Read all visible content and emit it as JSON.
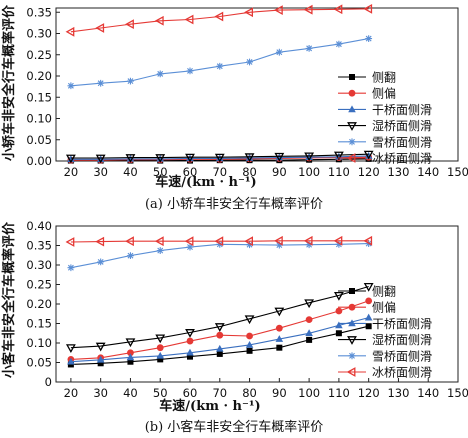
{
  "chart_data": [
    {
      "type": "line",
      "title": "(a) 小轿车非安全行车概率评价",
      "xlabel": "车速/(km · h⁻¹)",
      "ylabel": "小轿车非安全行车概率评价",
      "xlim": [
        15,
        150
      ],
      "ylim": [
        0,
        0.36
      ],
      "x_ticks": [
        20,
        30,
        40,
        50,
        60,
        70,
        80,
        90,
        100,
        110,
        120,
        130,
        140,
        150
      ],
      "y_ticks": [
        0.0,
        0.05,
        0.1,
        0.15,
        0.2,
        0.25,
        0.3,
        0.35
      ],
      "y_tick_labels": [
        "0.00",
        "0.05",
        "0.10",
        "0.15",
        "0.20",
        "0.25",
        "0.30",
        "0.35"
      ],
      "x": [
        20,
        30,
        40,
        50,
        60,
        70,
        80,
        90,
        100,
        110,
        120
      ],
      "legend_position": "right",
      "series": [
        {
          "name": "侧翻",
          "marker": "square",
          "color": "#000000",
          "values": [
            0.001,
            0.001,
            0.001,
            0.001,
            0.001,
            0.002,
            0.002,
            0.002,
            0.003,
            0.004,
            0.005
          ]
        },
        {
          "name": "侧偏",
          "marker": "circle",
          "color": "#e53935",
          "values": [
            0.002,
            0.002,
            0.003,
            0.003,
            0.004,
            0.004,
            0.005,
            0.006,
            0.007,
            0.008,
            0.009
          ]
        },
        {
          "name": "干桥面侧滑",
          "marker": "triangle-up",
          "color": "#3a6fbf",
          "values": [
            0.004,
            0.004,
            0.005,
            0.005,
            0.006,
            0.006,
            0.007,
            0.008,
            0.009,
            0.01,
            0.012
          ]
        },
        {
          "name": "湿桥面侧滑",
          "marker": "triangle-down",
          "color": "#000000",
          "values": [
            0.007,
            0.007,
            0.008,
            0.008,
            0.009,
            0.009,
            0.01,
            0.011,
            0.012,
            0.014,
            0.016
          ]
        },
        {
          "name": "雪桥面侧滑",
          "marker": "star",
          "color": "#5b8fd6",
          "values": [
            0.177,
            0.183,
            0.188,
            0.205,
            0.212,
            0.223,
            0.233,
            0.256,
            0.265,
            0.275,
            0.288
          ]
        },
        {
          "name": "冰桥面侧滑",
          "marker": "triangle-left",
          "color": "#e53935",
          "values": [
            0.304,
            0.313,
            0.322,
            0.33,
            0.333,
            0.34,
            0.35,
            0.355,
            0.356,
            0.357,
            0.358
          ]
        }
      ]
    },
    {
      "type": "line",
      "title": "(b) 小客车非安全行车概率评价",
      "xlabel": "车速/(km · h⁻¹)",
      "ylabel": "小客车非安全行车概率评价",
      "xlim": [
        15,
        150
      ],
      "ylim": [
        0,
        0.4
      ],
      "x_ticks": [
        20,
        30,
        40,
        50,
        60,
        70,
        80,
        90,
        100,
        110,
        120,
        130,
        140,
        150
      ],
      "y_ticks": [
        0.0,
        0.05,
        0.1,
        0.15,
        0.2,
        0.25,
        0.3,
        0.35,
        0.4
      ],
      "y_tick_labels": [
        "0",
        "0.05",
        "0.10",
        "0.15",
        "0.20",
        "0.25",
        "0.30",
        "0.35",
        "0.40"
      ],
      "x": [
        20,
        30,
        40,
        50,
        60,
        70,
        80,
        90,
        100,
        110,
        120
      ],
      "legend_position": "right",
      "series": [
        {
          "name": "侧翻",
          "marker": "square",
          "color": "#000000",
          "values": [
            0.045,
            0.048,
            0.052,
            0.058,
            0.065,
            0.072,
            0.08,
            0.088,
            0.108,
            0.125,
            0.143
          ]
        },
        {
          "name": "侧偏",
          "marker": "circle",
          "color": "#e53935",
          "values": [
            0.058,
            0.062,
            0.075,
            0.088,
            0.105,
            0.12,
            0.118,
            0.138,
            0.16,
            0.182,
            0.208
          ]
        },
        {
          "name": "干桥面侧滑",
          "marker": "triangle-up",
          "color": "#3a6fbf",
          "values": [
            0.052,
            0.057,
            0.063,
            0.067,
            0.075,
            0.085,
            0.095,
            0.11,
            0.125,
            0.145,
            0.165
          ]
        },
        {
          "name": "湿桥面侧滑",
          "marker": "triangle-down",
          "color": "#000000",
          "values": [
            0.088,
            0.092,
            0.103,
            0.113,
            0.127,
            0.142,
            0.162,
            0.182,
            0.203,
            0.222,
            0.245
          ]
        },
        {
          "name": "雪桥面侧滑",
          "marker": "star",
          "color": "#5b8fd6",
          "values": [
            0.293,
            0.308,
            0.324,
            0.337,
            0.346,
            0.353,
            0.352,
            0.351,
            0.352,
            0.353,
            0.355
          ]
        },
        {
          "name": "冰桥面侧滑",
          "marker": "triangle-left",
          "color": "#e53935",
          "values": [
            0.359,
            0.36,
            0.361,
            0.361,
            0.361,
            0.361,
            0.361,
            0.362,
            0.362,
            0.362,
            0.362
          ]
        }
      ]
    }
  ]
}
